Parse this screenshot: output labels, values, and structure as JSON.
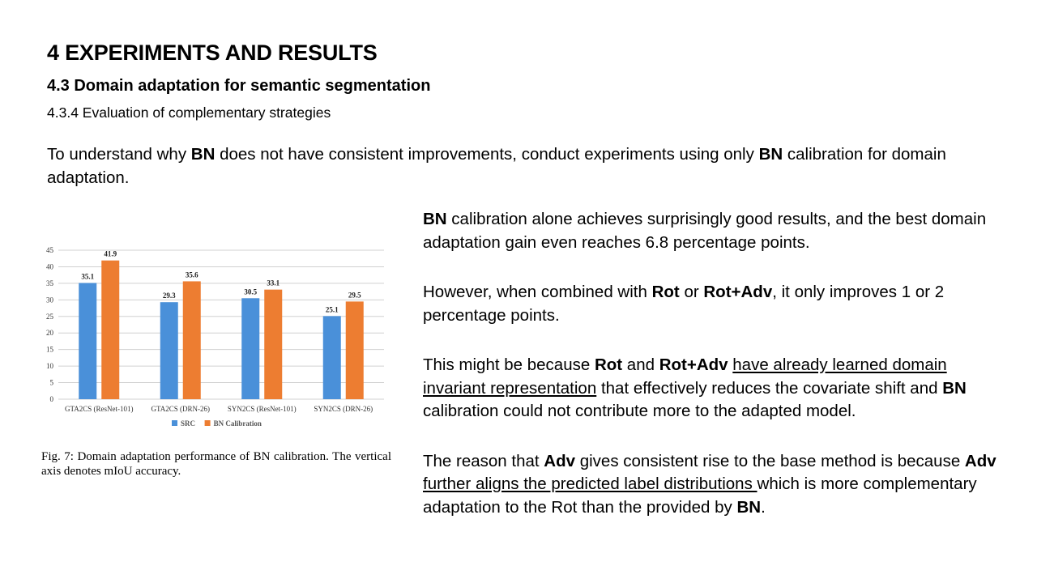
{
  "slide": {
    "title": "4 EXPERIMENTS AND RESULTS",
    "subtitle": "4.3 Domain adaptation for semantic segmentation",
    "subsubtitle": "4.3.4 Evaluation of complementary strategies",
    "intro": {
      "t1": "To understand why ",
      "b1": "BN",
      "t2": " does not have consistent improvements, conduct experiments using only ",
      "b2": "BN",
      "t3": " calibration for domain adaptation."
    },
    "p1": {
      "b1": "BN",
      "t1": " calibration alone achieves surprisingly good results, and the best domain adaptation gain even reaches 6.8 percentage points."
    },
    "p2": {
      "t1": "However, when combined with ",
      "b1": "Rot",
      "t2": " or ",
      "b2": "Rot+Adv",
      "t3": ", it only improves 1 or 2 percentage points."
    },
    "p3": {
      "t1": "This might be because ",
      "b1": "Rot",
      "t2": " and ",
      "b2": "Rot+Adv",
      "t3": " ",
      "u1": "have already learned domain invariant representation",
      "t4": " that effectively reduces the covariate shift and ",
      "b3": "BN",
      "t5": " calibration could not contribute more to the adapted model."
    },
    "p4": {
      "t1": "The reason that ",
      "b1": "Adv",
      "t2": " gives consistent rise to the base method is because ",
      "b2": "Adv",
      "t3": " ",
      "u1": "further aligns the predicted label distributions ",
      "t4": "which is more complementary adaptation to the Rot than the provided by ",
      "b3": "BN",
      "t5": "."
    },
    "caption": "Fig. 7: Domain adaptation performance of BN calibration. The vertical axis denotes mIoU accuracy."
  },
  "chart_data": {
    "type": "bar",
    "categories": [
      "GTA2CS (ResNet-101)",
      "GTA2CS (DRN-26)",
      "SYN2CS (ResNet-101)",
      "SYN2CS (DRN-26)"
    ],
    "series": [
      {
        "name": "SRC",
        "values": [
          35.1,
          29.3,
          30.5,
          25.1
        ],
        "color": "#4a90d9"
      },
      {
        "name": "BN Calibration",
        "values": [
          41.9,
          35.6,
          33.1,
          29.5
        ],
        "color": "#ed7d31"
      }
    ],
    "yticks": [
      0,
      5,
      10,
      15,
      20,
      25,
      30,
      35,
      40,
      45
    ],
    "ylim": [
      0,
      45
    ],
    "grid": true,
    "legend": "bottom",
    "data_labels": true
  }
}
